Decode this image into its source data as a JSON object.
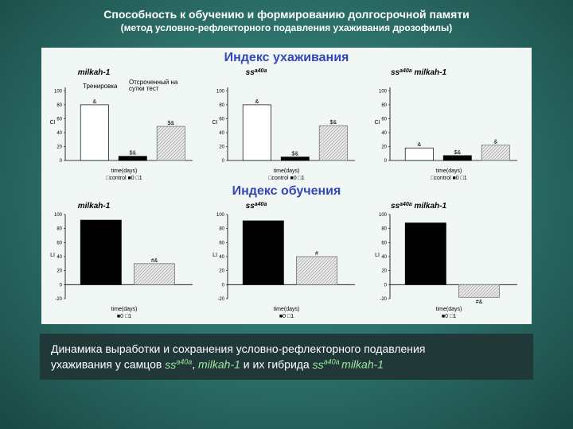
{
  "title": "Способность к обучению и формированию долгосрочной памяти",
  "subtitle": "(метод условно-рефлекторного подавления ухаживания дрозофилы)",
  "section1": "Индекс ухаживания",
  "section2": "Индекс обучения",
  "annot_train": "Тренировка",
  "annot_test": "Отсроченный на сутки тест",
  "xlabel": "time(days)",
  "legend_top": "□control  ■0  □1",
  "legend_bottom": "■0  □1",
  "caption_p1": "Динамика выработки и сохранения условно-рефлекторного подавления",
  "caption_p2": "ухаживания у самцов ",
  "caption_gene1": "ss",
  "caption_gene1_sup": "a40a",
  "caption_sep1": ", ",
  "caption_gene2": "milkah-1",
  "caption_sep2": " и их гибрида ",
  "caption_gene3": "ss",
  "caption_gene3_sup": "a40a ",
  "caption_gene4": "milkah-1",
  "colors": {
    "bg": "#f0f7f5",
    "control": "#ffffff",
    "bar0": "#000000",
    "bar1_fill": "#e8e8e8",
    "axis": "#000",
    "section": "#3347b8",
    "caption_bg": "#203838",
    "gene": "#9fe89f"
  },
  "top_chart": {
    "ylim": [
      0,
      105
    ],
    "yticks": [
      0,
      20,
      40,
      60,
      80,
      100
    ],
    "bar_width": 0.28,
    "panels": [
      {
        "title": "milkah-1",
        "ctrl": 80,
        "bar0": 6,
        "bar1": 49,
        "sig_ctrl": "&",
        "sig0": "$&",
        "sig1": "$&"
      },
      {
        "title": "ss^a40a",
        "ctrl": 80,
        "bar0": 5,
        "bar1": 50,
        "sig_ctrl": "&",
        "sig0": "$&",
        "sig1": "$&"
      },
      {
        "title": "ss^a40a milkah-1",
        "ctrl": 18,
        "bar0": 7,
        "bar1": 22,
        "sig_ctrl": "&",
        "sig0": "$&",
        "sig1": "&"
      }
    ]
  },
  "bottom_chart": {
    "ylim": [
      -20,
      100
    ],
    "yticks": [
      -20,
      0,
      20,
      40,
      60,
      80,
      100
    ],
    "bar_width": 0.4,
    "panels": [
      {
        "title": "milkah-1",
        "bar0": 92,
        "bar1": 30,
        "sig1": "#&"
      },
      {
        "title": "ss^a40a",
        "bar0": 91,
        "bar1": 40,
        "sig1": "#"
      },
      {
        "title": "ss^a40a milkah-1",
        "bar0": 88,
        "bar1": -18,
        "sig1": "#&"
      }
    ]
  }
}
